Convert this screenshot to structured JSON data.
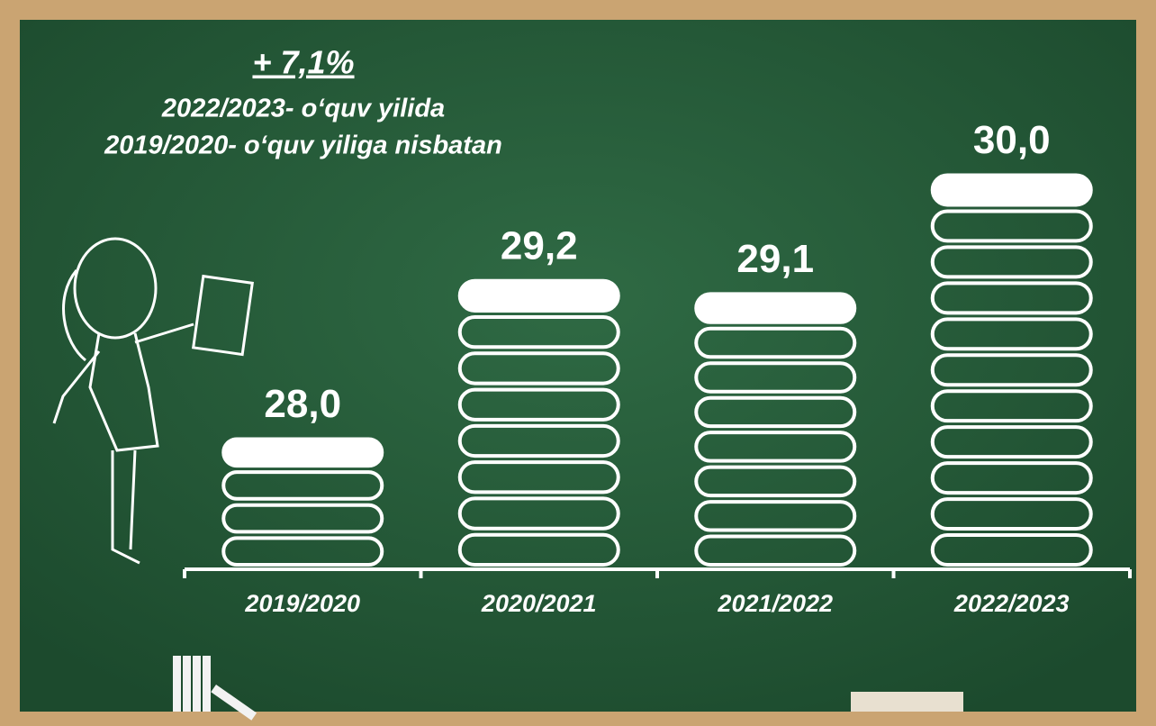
{
  "chart_data": {
    "type": "pill-bar",
    "title": "+ 7,1%",
    "subtitle_lines": [
      "2022/2023- o‘quv yilida",
      "2019/2020- o‘quv yiliga nisbatan"
    ],
    "categories": [
      "2019/2020",
      "2020/2021",
      "2021/2022",
      "2022/2023"
    ],
    "values": [
      28.0,
      29.2,
      29.1,
      30.0
    ],
    "value_labels": [
      "28,0",
      "29,2",
      "29,1",
      "30,0"
    ],
    "color": "#ffffff",
    "ylim": [
      27,
      31
    ]
  }
}
